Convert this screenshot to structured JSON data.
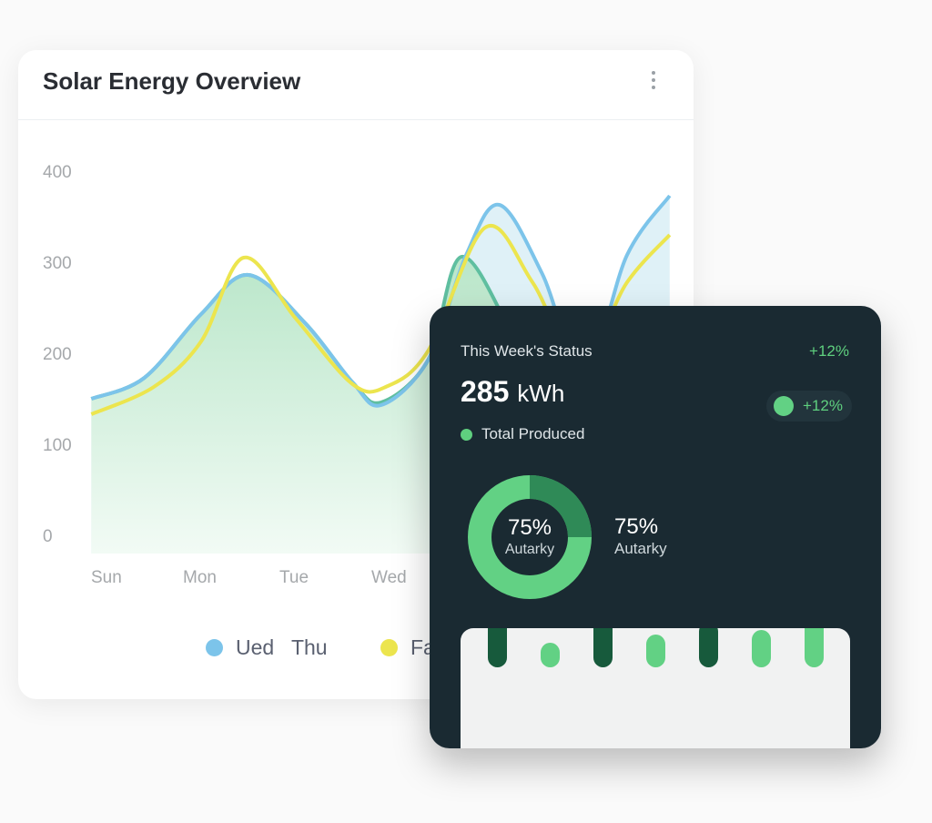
{
  "overview": {
    "title": "Solar Energy Overview",
    "menu_icon": "more-vertical-icon",
    "legend": [
      {
        "label": "Ued   Thu",
        "color": "#7cc4ea"
      },
      {
        "label": "Fa",
        "color": "#ece54e"
      }
    ]
  },
  "chart_data": {
    "type": "area",
    "title": "Solar Energy Overview",
    "ylim": [
      0,
      400
    ],
    "yticks": [
      "400",
      "300",
      "200",
      "100",
      "0"
    ],
    "categories": [
      "Sun",
      "Mon",
      "Tue",
      "Wed"
    ],
    "x_note": "x in day index (0=Sun)",
    "series": [
      {
        "name": "Ued Thu",
        "color": "#7cc4ea",
        "x": [
          -0.16,
          0.4,
          1.0,
          1.5,
          2.1,
          2.6,
          2.9,
          3.4,
          3.8,
          4.15,
          4.6,
          5.05,
          5.5,
          5.95
        ],
        "values": [
          162,
          185,
          255,
          298,
          245,
          180,
          155,
          205,
          320,
          375,
          300,
          190,
          320,
          385
        ]
      },
      {
        "name": "Fa",
        "color": "#ece54e",
        "x": [
          -0.16,
          0.5,
          1.0,
          1.45,
          2.0,
          2.6,
          2.95,
          3.4,
          4.0,
          4.5,
          5.0,
          5.5,
          5.95
        ],
        "values": [
          145,
          175,
          225,
          317,
          250,
          178,
          175,
          215,
          350,
          290,
          200,
          290,
          342
        ]
      },
      {
        "name": "Produced",
        "color": "#5fbfa0",
        "x": [
          -0.16,
          0.4,
          1.0,
          1.5,
          2.1,
          2.6,
          2.9,
          3.4,
          3.75,
          4.3,
          4.7
        ],
        "values": [
          162,
          185,
          255,
          298,
          245,
          180,
          158,
          205,
          318,
          230,
          150
        ]
      }
    ]
  },
  "status": {
    "title": "This Week's Status",
    "delta_top": "+12%",
    "value": "285",
    "unit": "kWh",
    "legend_label": "Total Produced",
    "pill_delta": "+12%",
    "autarky_percent": 75,
    "donut_value": "75%",
    "donut_label": "Autarky",
    "side_value": "75%",
    "side_label": "Autarky",
    "colors": {
      "accent": "#62d184",
      "dark_green": "#175a3c",
      "segment_dark": "#2f8a57"
    },
    "bars": [
      {
        "value": 55,
        "tone": "dark"
      },
      {
        "value": 72,
        "tone": "dark"
      },
      {
        "value": 27,
        "tone": "light"
      },
      {
        "value": 56,
        "tone": "dark"
      },
      {
        "value": 36,
        "tone": "light"
      },
      {
        "value": 50,
        "tone": "dark"
      },
      {
        "value": 41,
        "tone": "light"
      },
      {
        "value": 63,
        "tone": "light"
      }
    ]
  }
}
